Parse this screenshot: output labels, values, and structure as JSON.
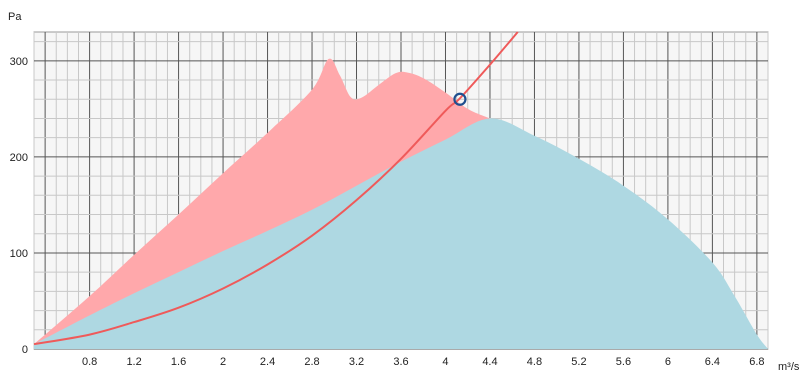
{
  "chart_data": {
    "type": "area",
    "xunit": "m³/s",
    "yunit": "Pa",
    "xlim": [
      0.3,
      6.9
    ],
    "ylim": [
      0,
      330
    ],
    "xticks": [
      "0.8",
      "1.2",
      "1.6",
      "2",
      "2.4",
      "2.8",
      "3.2",
      "3.6",
      "4",
      "4.4",
      "4.8",
      "5.2",
      "5.6",
      "6",
      "6.4",
      "6.8"
    ],
    "xtick_values": [
      0.8,
      1.2,
      1.6,
      2.0,
      2.4,
      2.8,
      3.2,
      3.6,
      4.0,
      4.4,
      4.8,
      5.2,
      5.6,
      6.0,
      6.4,
      6.8
    ],
    "yticks": [
      "0",
      "100",
      "200",
      "300"
    ],
    "ytick_values": [
      0,
      100,
      200,
      300
    ],
    "grid": true,
    "colors": {
      "upper_area": "#ffa8ab",
      "lower_area": "#aed8e2",
      "system_curve": "#ef5a5a",
      "operating_point": "#1f4f8f",
      "grid_major": "#555555",
      "grid_minor": "#c8c8c8",
      "plot_background": "#f6f6f6"
    },
    "series": [
      {
        "kind": "upper_area",
        "x": [
          0.3,
          0.8,
          1.2,
          1.6,
          2.0,
          2.4,
          2.8,
          2.95,
          3.05,
          3.15,
          3.25,
          3.4,
          3.55,
          3.65,
          3.8,
          4.0,
          4.2,
          4.4
        ],
        "y": [
          5,
          55,
          98,
          140,
          183,
          225,
          270,
          302,
          285,
          262,
          262,
          275,
          287,
          288,
          282,
          267,
          250,
          240
        ]
      },
      {
        "kind": "lower_area",
        "x": [
          0.3,
          0.8,
          1.2,
          1.6,
          2.0,
          2.4,
          2.8,
          3.2,
          3.6,
          4.0,
          4.4,
          4.8,
          5.2,
          5.6,
          6.0,
          6.4,
          6.6,
          6.8,
          6.9
        ],
        "y": [
          5,
          35,
          58,
          80,
          102,
          123,
          145,
          170,
          195,
          218,
          240,
          222,
          198,
          170,
          135,
          90,
          55,
          15,
          0
        ]
      },
      {
        "kind": "system_curve",
        "x": [
          0.3,
          0.8,
          1.2,
          1.6,
          2.0,
          2.4,
          2.8,
          3.2,
          3.6,
          4.0,
          4.13,
          4.4,
          4.65
        ],
        "y": [
          5,
          15,
          28,
          43,
          63,
          88,
          118,
          155,
          198,
          248,
          261,
          296,
          330
        ]
      }
    ],
    "operating_point": {
      "x": 4.13,
      "y": 260
    }
  }
}
